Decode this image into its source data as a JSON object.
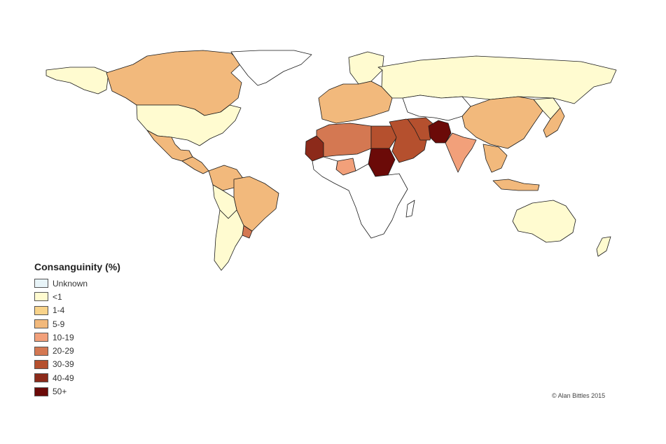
{
  "legend": {
    "title": "Consanguinity (%)",
    "items": [
      {
        "label": "Unknown",
        "color": "#e8f4f8"
      },
      {
        "label": "<1",
        "color": "#fffbd0"
      },
      {
        "label": "1-4",
        "color": "#f8d38a"
      },
      {
        "label": "5-9",
        "color": "#f2b97c"
      },
      {
        "label": "10-19",
        "color": "#f2a07a"
      },
      {
        "label": "20-29",
        "color": "#d47852"
      },
      {
        "label": "30-39",
        "color": "#b5502e"
      },
      {
        "label": "40-49",
        "color": "#8c2a1a"
      },
      {
        "label": "50+",
        "color": "#6b0a08"
      }
    ]
  },
  "credit": "© Alan Bittles 2015",
  "colors": {
    "no_data": "#ffffff",
    "border": "#1a1a1a",
    "background": "#ffffff"
  },
  "regions": [
    {
      "name": "canada",
      "category": "5-9"
    },
    {
      "name": "alaska",
      "category": "<1"
    },
    {
      "name": "greenland",
      "category": "no-data"
    },
    {
      "name": "usa",
      "category": "<1"
    },
    {
      "name": "mexico",
      "category": "5-9"
    },
    {
      "name": "central-america",
      "category": "5-9"
    },
    {
      "name": "colombia-venezuela",
      "category": "5-9"
    },
    {
      "name": "brazil",
      "category": "5-9"
    },
    {
      "name": "peru-bolivia",
      "category": "<1"
    },
    {
      "name": "argentina-chile",
      "category": "<1"
    },
    {
      "name": "uruguay",
      "category": "20-29"
    },
    {
      "name": "russia",
      "category": "<1"
    },
    {
      "name": "scandinavia",
      "category": "<1"
    },
    {
      "name": "western-europe",
      "category": "5-9"
    },
    {
      "name": "central-asia",
      "category": "no-data"
    },
    {
      "name": "china",
      "category": "5-9"
    },
    {
      "name": "japan",
      "category": "5-9"
    },
    {
      "name": "korea",
      "category": "<1"
    },
    {
      "name": "north-africa-west",
      "category": "20-29"
    },
    {
      "name": "mauritania-mali",
      "category": "40-49"
    },
    {
      "name": "egypt",
      "category": "30-39"
    },
    {
      "name": "sudan",
      "category": "50+"
    },
    {
      "name": "nigeria",
      "category": "10-19"
    },
    {
      "name": "sub-saharan-africa",
      "category": "no-data"
    },
    {
      "name": "madagascar",
      "category": "no-data"
    },
    {
      "name": "middle-east",
      "category": "30-39"
    },
    {
      "name": "iran",
      "category": "30-39"
    },
    {
      "name": "pakistan-afghanistan",
      "category": "50+"
    },
    {
      "name": "india",
      "category": "10-19"
    },
    {
      "name": "southeast-asia",
      "category": "5-9"
    },
    {
      "name": "indonesia",
      "category": "5-9"
    },
    {
      "name": "australia",
      "category": "<1"
    },
    {
      "name": "new-zealand",
      "category": "<1"
    }
  ]
}
